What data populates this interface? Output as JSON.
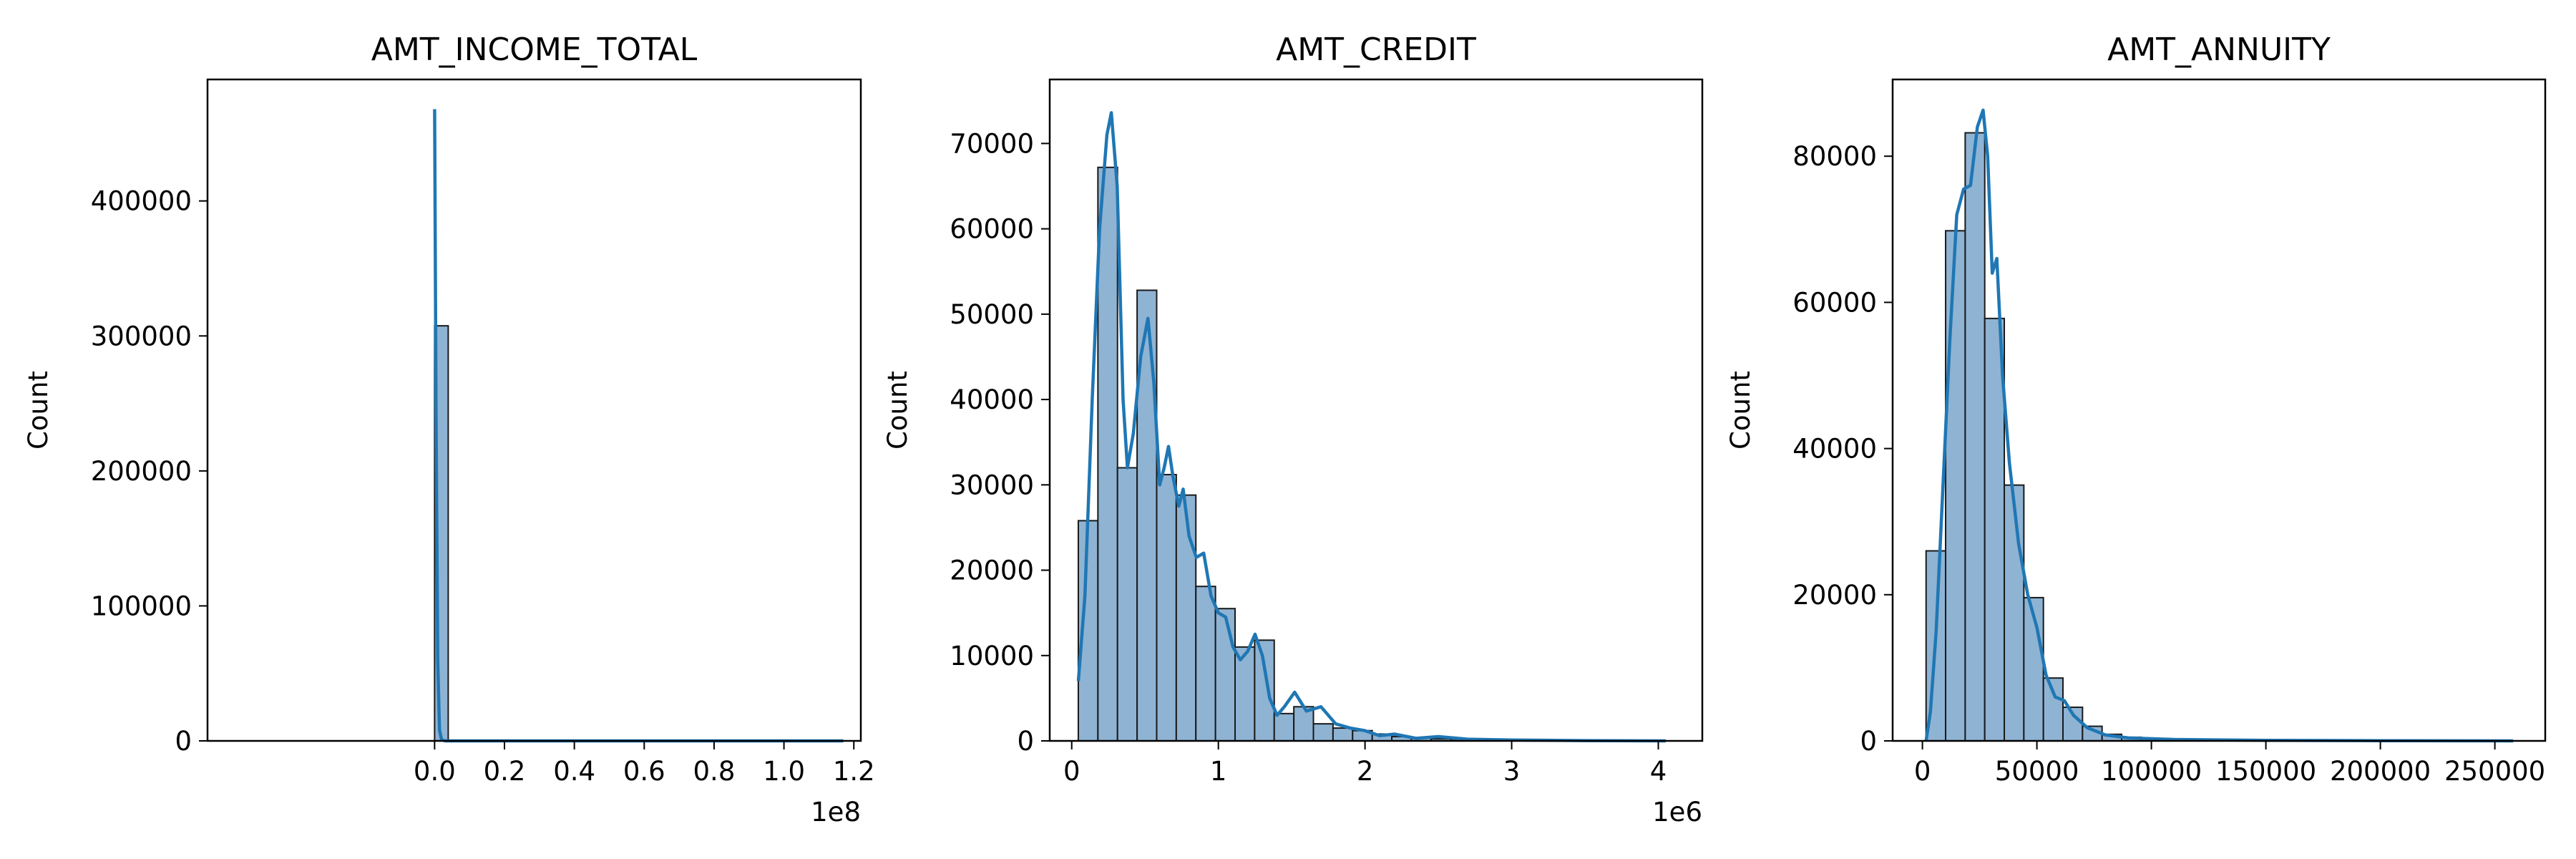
{
  "colors": {
    "bar_fill": "#8fb3d3",
    "bar_edge": "#1a1a1a",
    "kde_line": "#1f77b4"
  },
  "chart_data": [
    {
      "type": "bar",
      "kind": "histogram with kde",
      "title": "AMT_INCOME_TOTAL",
      "ylabel": "Count",
      "xlabel": "",
      "x_offset_label": "1e8",
      "xlim": [
        -0.65,
        1.22
      ],
      "ylim": [
        0,
        490000
      ],
      "xticks": [
        0,
        0.2,
        0.4,
        0.6,
        0.8,
        1.0,
        1.2
      ],
      "xtick_labels": [
        "0.0",
        "0.2",
        "0.4",
        "0.6",
        "0.8",
        "1.0",
        "1.2"
      ],
      "yticks": [
        0,
        100000,
        200000,
        300000,
        400000
      ],
      "ytick_labels": [
        "0",
        "100000",
        "200000",
        "300000",
        "400000"
      ],
      "bins": [
        {
          "x0": 0.0,
          "x1": 0.039,
          "count": 307500
        }
      ],
      "kde": [
        [
          0.0,
          468000
        ],
        [
          0.004,
          250000
        ],
        [
          0.009,
          60000
        ],
        [
          0.014,
          8000
        ],
        [
          0.02,
          800
        ],
        [
          0.03,
          0
        ],
        [
          1.17,
          0
        ]
      ]
    },
    {
      "type": "bar",
      "kind": "histogram with kde",
      "title": "AMT_CREDIT",
      "ylabel": "Count",
      "xlabel": "",
      "x_offset_label": "1e6",
      "xlim": [
        -0.15,
        4.3
      ],
      "ylim": [
        0,
        77500
      ],
      "xticks": [
        0,
        1,
        2,
        3,
        4
      ],
      "xtick_labels": [
        "0",
        "1",
        "2",
        "3",
        "4"
      ],
      "yticks": [
        0,
        10000,
        20000,
        30000,
        40000,
        50000,
        60000,
        70000
      ],
      "ytick_labels": [
        "0",
        "10000",
        "20000",
        "30000",
        "40000",
        "50000",
        "60000",
        "70000"
      ],
      "bin_start": 0.045,
      "bin_width": 0.1336,
      "counts": [
        25800,
        67200,
        32000,
        52800,
        31200,
        28800,
        18100,
        15500,
        11000,
        11800,
        3200,
        4000,
        2000,
        1500,
        1200,
        800,
        500,
        400,
        250,
        200,
        100,
        80,
        60,
        40,
        30,
        20,
        15,
        10,
        8,
        5
      ],
      "kde": [
        [
          0.045,
          7000
        ],
        [
          0.09,
          17000
        ],
        [
          0.14,
          40000
        ],
        [
          0.19,
          60000
        ],
        [
          0.24,
          71000
        ],
        [
          0.27,
          73600
        ],
        [
          0.31,
          65000
        ],
        [
          0.35,
          40000
        ],
        [
          0.38,
          32000
        ],
        [
          0.42,
          36000
        ],
        [
          0.47,
          45000
        ],
        [
          0.52,
          49500
        ],
        [
          0.56,
          42000
        ],
        [
          0.6,
          30000
        ],
        [
          0.63,
          32000
        ],
        [
          0.66,
          34500
        ],
        [
          0.69,
          31000
        ],
        [
          0.73,
          27500
        ],
        [
          0.76,
          29500
        ],
        [
          0.8,
          24000
        ],
        [
          0.85,
          21500
        ],
        [
          0.9,
          22000
        ],
        [
          0.95,
          17000
        ],
        [
          1.0,
          15000
        ],
        [
          1.05,
          14500
        ],
        [
          1.1,
          11000
        ],
        [
          1.15,
          9500
        ],
        [
          1.2,
          10500
        ],
        [
          1.25,
          12500
        ],
        [
          1.3,
          10000
        ],
        [
          1.35,
          5000
        ],
        [
          1.4,
          3000
        ],
        [
          1.45,
          4000
        ],
        [
          1.52,
          5700
        ],
        [
          1.6,
          3500
        ],
        [
          1.7,
          4000
        ],
        [
          1.8,
          2000
        ],
        [
          1.9,
          1500
        ],
        [
          2.0,
          1200
        ],
        [
          2.1,
          600
        ],
        [
          2.2,
          800
        ],
        [
          2.35,
          300
        ],
        [
          2.5,
          500
        ],
        [
          2.7,
          200
        ],
        [
          3.0,
          100
        ],
        [
          3.5,
          30
        ],
        [
          4.05,
          0
        ]
      ]
    },
    {
      "type": "bar",
      "kind": "histogram with kde",
      "title": "AMT_ANNUITY",
      "ylabel": "Count",
      "xlabel": "",
      "x_offset_label": "",
      "xlim": [
        -13000,
        272000
      ],
      "ylim": [
        0,
        90500
      ],
      "xticks": [
        0,
        50000,
        100000,
        150000,
        200000,
        250000
      ],
      "xtick_labels": [
        "0",
        "50000",
        "100000",
        "150000",
        "200000",
        "250000"
      ],
      "yticks": [
        0,
        20000,
        40000,
        60000,
        80000
      ],
      "ytick_labels": [
        "0",
        "20000",
        "40000",
        "60000",
        "80000"
      ],
      "bin_start": 1600,
      "bin_width": 8540,
      "counts": [
        26000,
        69800,
        83200,
        57800,
        35000,
        19600,
        8600,
        4600,
        2000,
        900,
        500,
        300,
        200,
        150,
        100,
        80,
        60,
        40,
        30,
        25,
        20,
        15,
        12,
        10,
        8,
        6,
        5,
        4,
        3,
        2
      ],
      "kde": [
        [
          1600,
          0
        ],
        [
          3500,
          4000
        ],
        [
          6000,
          15000
        ],
        [
          9000,
          35000
        ],
        [
          12000,
          55000
        ],
        [
          15000,
          72000
        ],
        [
          18000,
          75500
        ],
        [
          21000,
          76000
        ],
        [
          24000,
          84000
        ],
        [
          26500,
          86300
        ],
        [
          28500,
          80000
        ],
        [
          30500,
          64000
        ],
        [
          32500,
          66000
        ],
        [
          35000,
          50000
        ],
        [
          38000,
          38000
        ],
        [
          42000,
          27000
        ],
        [
          46000,
          20000
        ],
        [
          50000,
          15500
        ],
        [
          54000,
          9000
        ],
        [
          58000,
          6000
        ],
        [
          62000,
          5500
        ],
        [
          66000,
          3500
        ],
        [
          72000,
          1800
        ],
        [
          80000,
          800
        ],
        [
          90000,
          400
        ],
        [
          110000,
          200
        ],
        [
          150000,
          80
        ],
        [
          200000,
          30
        ],
        [
          258000,
          0
        ]
      ]
    }
  ]
}
